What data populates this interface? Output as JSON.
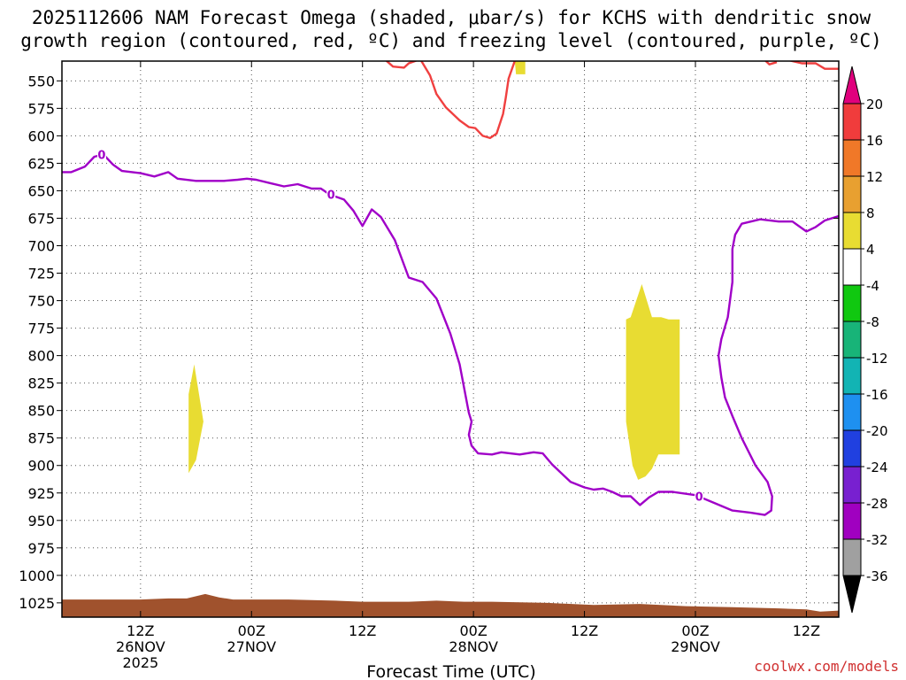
{
  "chart_data": {
    "type": "time-height",
    "title_lines": [
      "2025112606 NAM Forecast Omega (shaded, μbar/s) for KCHS with dendritic snow",
      "growth region (contoured, red, ºC) and freezing level (contoured, purple, ºC)"
    ],
    "xlabel": "Forecast Time (UTC)",
    "credit": "coolwx.com/models",
    "y_axis": {
      "range": [
        532,
        1038
      ],
      "ticks": [
        550,
        575,
        600,
        625,
        650,
        675,
        700,
        725,
        750,
        775,
        800,
        825,
        850,
        875,
        900,
        925,
        950,
        975,
        1000,
        1025
      ]
    },
    "x_axis": {
      "range_hours": [
        -2.5,
        81.5
      ],
      "ticks": [
        {
          "hour": 6,
          "label": "12Z",
          "sub": "26NOV",
          "sub2": "2025"
        },
        {
          "hour": 18,
          "label": "00Z",
          "sub": "27NOV",
          "sub2": ""
        },
        {
          "hour": 30,
          "label": "12Z",
          "sub": "",
          "sub2": ""
        },
        {
          "hour": 42,
          "label": "00Z",
          "sub": "28NOV",
          "sub2": ""
        },
        {
          "hour": 54,
          "label": "12Z",
          "sub": "",
          "sub2": ""
        },
        {
          "hour": 66,
          "label": "00Z",
          "sub": "29NOV",
          "sub2": ""
        },
        {
          "hour": 78,
          "label": "12Z",
          "sub": "",
          "sub2": ""
        }
      ]
    },
    "colorbar": {
      "labels": [
        "20",
        "16",
        "12",
        "8",
        "4",
        "-4",
        "-8",
        "-12",
        "-16",
        "-20",
        "-24",
        "-28",
        "-32",
        "-36"
      ],
      "top_color": "#e0007d",
      "bottom_color": "#000000",
      "colors": [
        "#f03c3c",
        "#f07828",
        "#e8a030",
        "#e8dc32",
        "#ffffff",
        "#10c810",
        "#18b478",
        "#12b4b4",
        "#1e90f0",
        "#2040e0",
        "#7820d0",
        "#a000c0",
        "#a0a0a0"
      ]
    },
    "omega_shaded_4_to_8": [
      [
        [
          11.2,
          835
        ],
        [
          11.8,
          808
        ],
        [
          12.8,
          860
        ],
        [
          12.0,
          895
        ],
        [
          11.2,
          907
        ]
      ],
      [
        [
          46.2,
          531
        ],
        [
          47.6,
          531
        ],
        [
          47.6,
          544
        ],
        [
          46.6,
          544
        ],
        [
          46.5,
          535
        ]
      ],
      [
        [
          58.5,
          767
        ],
        [
          59.0,
          765
        ],
        [
          60.2,
          735
        ],
        [
          61.3,
          765
        ],
        [
          62.3,
          765
        ],
        [
          63.1,
          767
        ],
        [
          64.3,
          767
        ],
        [
          64.3,
          890
        ],
        [
          62.0,
          890
        ],
        [
          61.3,
          903
        ],
        [
          60.6,
          910
        ],
        [
          59.8,
          913
        ],
        [
          59.2,
          900
        ],
        [
          58.5,
          860
        ]
      ]
    ],
    "freezing_level_0C": {
      "color": "#a000c8",
      "label": "0",
      "label_points": [
        [
          1.8,
          618
        ],
        [
          26.6,
          654
        ],
        [
          66.4,
          929
        ]
      ],
      "points": [
        [
          -2.5,
          633
        ],
        [
          -1.5,
          633
        ],
        [
          0.0,
          628
        ],
        [
          1.0,
          619
        ],
        [
          2.0,
          617
        ],
        [
          3.0,
          626
        ],
        [
          4.0,
          632
        ],
        [
          6.0,
          634
        ],
        [
          7.5,
          637
        ],
        [
          9.0,
          633
        ],
        [
          10.0,
          639
        ],
        [
          12.0,
          641
        ],
        [
          15.0,
          641
        ],
        [
          16.5,
          640
        ],
        [
          17.5,
          639
        ],
        [
          18.5,
          640
        ],
        [
          20.0,
          643
        ],
        [
          21.5,
          646
        ],
        [
          23.0,
          644
        ],
        [
          24.5,
          648
        ],
        [
          25.5,
          648
        ],
        [
          26.2,
          652
        ],
        [
          27.0,
          655
        ],
        [
          28.0,
          658
        ],
        [
          29.0,
          668
        ],
        [
          30.0,
          682
        ],
        [
          31.0,
          667
        ],
        [
          32.0,
          674
        ],
        [
          33.5,
          695
        ],
        [
          35.0,
          729
        ],
        [
          36.5,
          733
        ],
        [
          38.0,
          748
        ],
        [
          39.5,
          780
        ],
        [
          40.5,
          808
        ],
        [
          41.5,
          852
        ],
        [
          41.8,
          860
        ],
        [
          41.5,
          872
        ],
        [
          41.8,
          882
        ],
        [
          42.5,
          889
        ],
        [
          44.0,
          890
        ],
        [
          45.0,
          888
        ],
        [
          46.0,
          889
        ],
        [
          47.0,
          890
        ],
        [
          48.5,
          888
        ],
        [
          49.5,
          889
        ],
        [
          50.5,
          899
        ],
        [
          51.5,
          907
        ],
        [
          52.5,
          915
        ],
        [
          54.0,
          920
        ],
        [
          55.0,
          922
        ],
        [
          56.0,
          921
        ],
        [
          57.0,
          924
        ],
        [
          58.0,
          928
        ],
        [
          59.0,
          928
        ],
        [
          60.0,
          936
        ],
        [
          61.0,
          929
        ],
        [
          62.0,
          924
        ],
        [
          63.5,
          924
        ],
        [
          66.0,
          927
        ],
        [
          68.0,
          934
        ],
        [
          70.0,
          941
        ],
        [
          72.0,
          943
        ],
        [
          73.5,
          945
        ],
        [
          74.2,
          941
        ],
        [
          74.3,
          928
        ],
        [
          73.8,
          915
        ],
        [
          72.5,
          900
        ],
        [
          71.0,
          875
        ],
        [
          70.0,
          855
        ],
        [
          69.2,
          838
        ],
        [
          68.8,
          820
        ],
        [
          68.5,
          800
        ],
        [
          68.8,
          785
        ],
        [
          69.5,
          765
        ],
        [
          70.0,
          733
        ],
        [
          70.0,
          703
        ],
        [
          70.3,
          690
        ],
        [
          71.0,
          680
        ],
        [
          73.0,
          676
        ],
        [
          75.0,
          678
        ],
        [
          76.5,
          678
        ],
        [
          78.0,
          687
        ],
        [
          79.0,
          683
        ],
        [
          80.0,
          677
        ],
        [
          81.5,
          673
        ]
      ]
    },
    "dgz_contours": {
      "color": "#f04040",
      "lines": [
        [
          [
            32.5,
            531
          ],
          [
            33.3,
            537
          ],
          [
            34.5,
            538
          ],
          [
            35.0,
            534
          ],
          [
            36.0,
            531
          ]
        ],
        [
          [
            36.3,
            531
          ],
          [
            37.3,
            545
          ],
          [
            38.0,
            562
          ],
          [
            39.0,
            574
          ],
          [
            40.5,
            586
          ],
          [
            41.5,
            592
          ],
          [
            42.2,
            593
          ],
          [
            43.0,
            600
          ],
          [
            43.8,
            602
          ],
          [
            44.5,
            598
          ],
          [
            45.2,
            580
          ],
          [
            45.5,
            565
          ],
          [
            45.8,
            548
          ],
          [
            46.5,
            531
          ]
        ],
        [
          [
            73.5,
            531
          ],
          [
            74.0,
            535
          ],
          [
            74.8,
            533
          ]
        ],
        [
          [
            76.0,
            531
          ],
          [
            77.5,
            534
          ],
          [
            79.0,
            534
          ],
          [
            80.0,
            539
          ],
          [
            81.5,
            539
          ]
        ]
      ]
    },
    "terrain": {
      "color": "#a0522d",
      "points": [
        [
          -2.5,
          1022
        ],
        [
          0.0,
          1022
        ],
        [
          6.0,
          1022
        ],
        [
          9.0,
          1021
        ],
        [
          11.0,
          1021
        ],
        [
          13.0,
          1017
        ],
        [
          14.5,
          1020
        ],
        [
          16.0,
          1022
        ],
        [
          22.0,
          1022
        ],
        [
          27.0,
          1023
        ],
        [
          30.0,
          1024
        ],
        [
          35.0,
          1024
        ],
        [
          38.0,
          1023
        ],
        [
          41.0,
          1024
        ],
        [
          44.0,
          1024
        ],
        [
          50.0,
          1025
        ],
        [
          55.0,
          1027
        ],
        [
          60.0,
          1026
        ],
        [
          65.0,
          1028
        ],
        [
          70.0,
          1029
        ],
        [
          75.0,
          1030
        ],
        [
          78.0,
          1031
        ],
        [
          79.5,
          1033
        ],
        [
          81.5,
          1032
        ]
      ]
    }
  }
}
